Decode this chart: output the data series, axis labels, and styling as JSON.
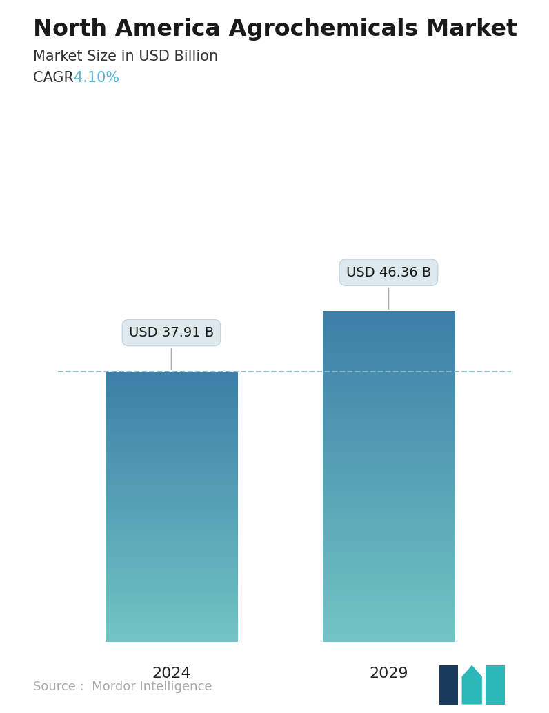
{
  "title": "North America Agrochemicals Market",
  "subtitle": "Market Size in USD Billion",
  "cagr_label": "CAGR ",
  "cagr_value": "4.10%",
  "cagr_color": "#5ab4d4",
  "categories": [
    "2024",
    "2029"
  ],
  "values": [
    37.91,
    46.36
  ],
  "bar_labels": [
    "USD 37.91 B",
    "USD 46.36 B"
  ],
  "bar_top_color": "#3d7fa8",
  "bar_bottom_color": "#72c4c4",
  "dashed_line_color": "#88bbcc",
  "dashed_line_value": 37.91,
  "source_text": "Source :  Mordor Intelligence",
  "source_color": "#aaaaaa",
  "background_color": "#ffffff",
  "title_fontsize": 24,
  "subtitle_fontsize": 15,
  "cagr_fontsize": 15,
  "bar_label_fontsize": 14,
  "axis_label_fontsize": 16,
  "source_fontsize": 13,
  "ylim": [
    0,
    56
  ],
  "bar_width": 0.28,
  "positions": [
    0.27,
    0.73
  ]
}
